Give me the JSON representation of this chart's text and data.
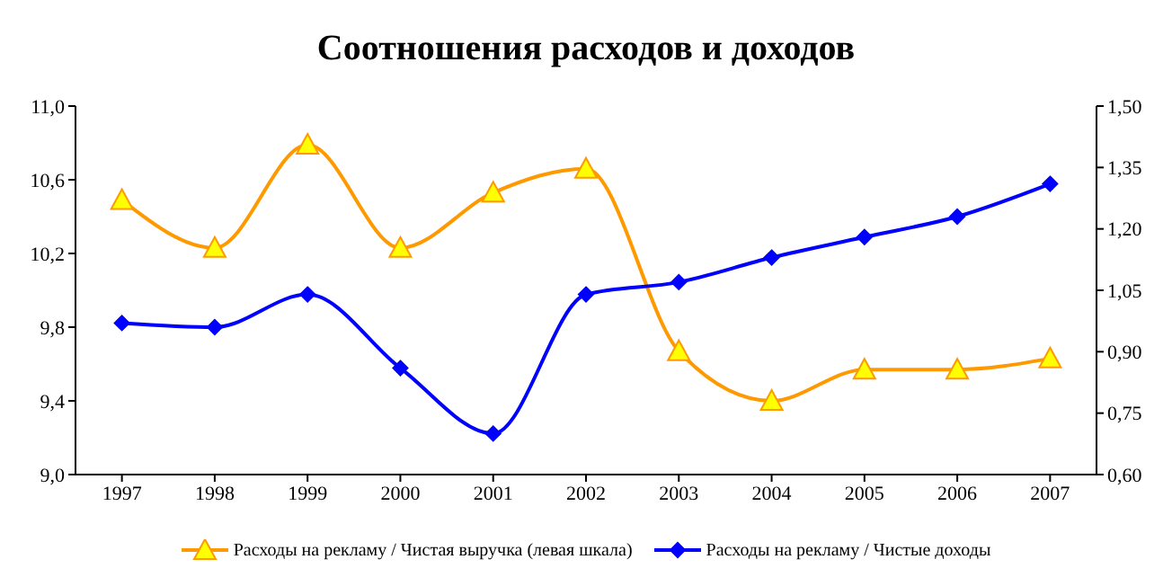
{
  "chart_data": {
    "type": "line",
    "title": "Соотношения расходов и доходов",
    "categories": [
      "1997",
      "1998",
      "1999",
      "2000",
      "2001",
      "2002",
      "2003",
      "2004",
      "2005",
      "2006",
      "2007"
    ],
    "series": [
      {
        "name": "Расходы на рекламу / Чистая выручка (левая шкала)",
        "color": "#ff9900",
        "marker": "triangle",
        "values": [
          10.49,
          10.23,
          10.79,
          10.23,
          10.53,
          10.66,
          9.67,
          9.4,
          9.57,
          9.57,
          9.63
        ]
      },
      {
        "name": "Расходы на рекламу / Чистые доходы",
        "color": "#0000ff",
        "marker": "diamond",
        "axis": "y2",
        "values": [
          0.97,
          0.96,
          1.04,
          0.86,
          0.7,
          1.04,
          1.07,
          1.13,
          1.18,
          1.23,
          1.31
        ]
      }
    ],
    "ylim": [
      9.0,
      11.0
    ],
    "yticks": [
      {
        "value": 9.0,
        "label": "9,0"
      },
      {
        "value": 9.4,
        "label": "9,4"
      },
      {
        "value": 9.8,
        "label": "9,8"
      },
      {
        "value": 10.2,
        "label": "10,2"
      },
      {
        "value": 10.6,
        "label": "10,6"
      },
      {
        "value": 11.0,
        "label": "11,0"
      }
    ],
    "y2lim": [
      0.6,
      1.5
    ],
    "y2ticks": [
      {
        "value": 0.6,
        "label": "0,60"
      },
      {
        "value": 0.75,
        "label": "0,75"
      },
      {
        "value": 0.9,
        "label": "0,90"
      },
      {
        "value": 1.05,
        "label": "1,05"
      },
      {
        "value": 1.2,
        "label": "1,20"
      },
      {
        "value": 1.35,
        "label": "1,35"
      },
      {
        "value": 1.5,
        "label": "1,50"
      }
    ],
    "grid": false,
    "legend": "bottom"
  }
}
